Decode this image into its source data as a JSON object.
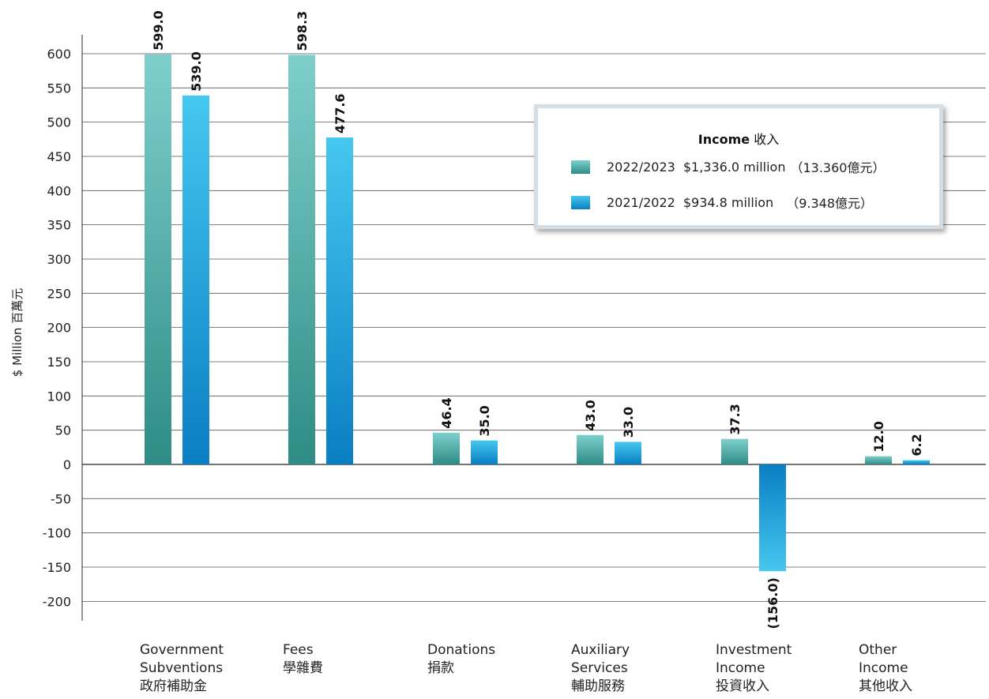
{
  "chart_data": {
    "type": "bar",
    "ylabel": "$ Million 百萬元",
    "ylim": [
      -230,
      640
    ],
    "yticks": [
      600,
      550,
      500,
      450,
      400,
      350,
      300,
      250,
      200,
      150,
      100,
      50,
      0,
      -50,
      -100,
      -150,
      -200
    ],
    "grid": true,
    "legend_position": "top-right",
    "categories": [
      [
        "Government",
        "Subventions",
        "政府補助金"
      ],
      [
        "Fees",
        "學雜費"
      ],
      [
        "Donations",
        "捐款"
      ],
      [
        "Auxiliary",
        "Services",
        "輔助服務"
      ],
      [
        "Investment",
        "Income",
        "投資收入"
      ],
      [
        "Other",
        "Income",
        "其他收入"
      ]
    ],
    "series": [
      {
        "name": "2022/2023",
        "values": [
          599.0,
          598.3,
          46.4,
          43.0,
          37.3,
          12.0
        ],
        "labels": [
          "599.0",
          "598.3",
          "46.4",
          "43.0",
          "37.3",
          "12.0"
        ],
        "color_top": "#7ecfcc",
        "color_bottom": "#2e8c85"
      },
      {
        "name": "2021/2022",
        "values": [
          539.0,
          477.6,
          35.0,
          33.0,
          -156.0,
          6.2
        ],
        "labels": [
          "539.0",
          "477.6",
          "35.0",
          "33.0",
          "(156.0)",
          "6.2"
        ],
        "color_top": "#45c8f0",
        "color_bottom": "#0a7ec2"
      }
    ]
  },
  "legend": {
    "title_bold": "Income",
    "title_rest": " 收入",
    "items": [
      {
        "period": "2022/2023",
        "amount": "$1,336.0 million",
        "local": "（13.360億元）"
      },
      {
        "period": "2021/2022",
        "amount": "$934.8 million",
        "local": "（9.348億元）"
      }
    ]
  }
}
